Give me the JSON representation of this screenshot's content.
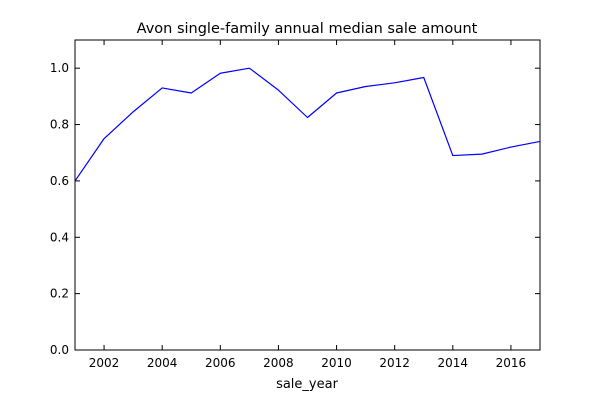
{
  "chart_data": {
    "type": "line",
    "title": "Avon single-family annual median sale amount",
    "xlabel": "sale_year",
    "ylabel": "",
    "xlim": [
      2001,
      2017
    ],
    "ylim": [
      0.0,
      1.1
    ],
    "grid": false,
    "x_ticks": [
      2002,
      2004,
      2006,
      2008,
      2010,
      2012,
      2014,
      2016
    ],
    "y_ticks": [
      0.0,
      0.2,
      0.4,
      0.6,
      0.8,
      1.0
    ],
    "series": [
      {
        "color": "#0000ff",
        "x": [
          2001,
          2002,
          2003,
          2004,
          2005,
          2006,
          2007,
          2008,
          2009,
          2010,
          2011,
          2012,
          2013,
          2014,
          2015,
          2016,
          2017
        ],
        "values": [
          0.6,
          0.75,
          0.845,
          0.93,
          0.912,
          0.982,
          1.0,
          0.922,
          0.825,
          0.912,
          0.935,
          0.948,
          0.967,
          0.69,
          0.695,
          0.72,
          0.74
        ]
      }
    ]
  }
}
